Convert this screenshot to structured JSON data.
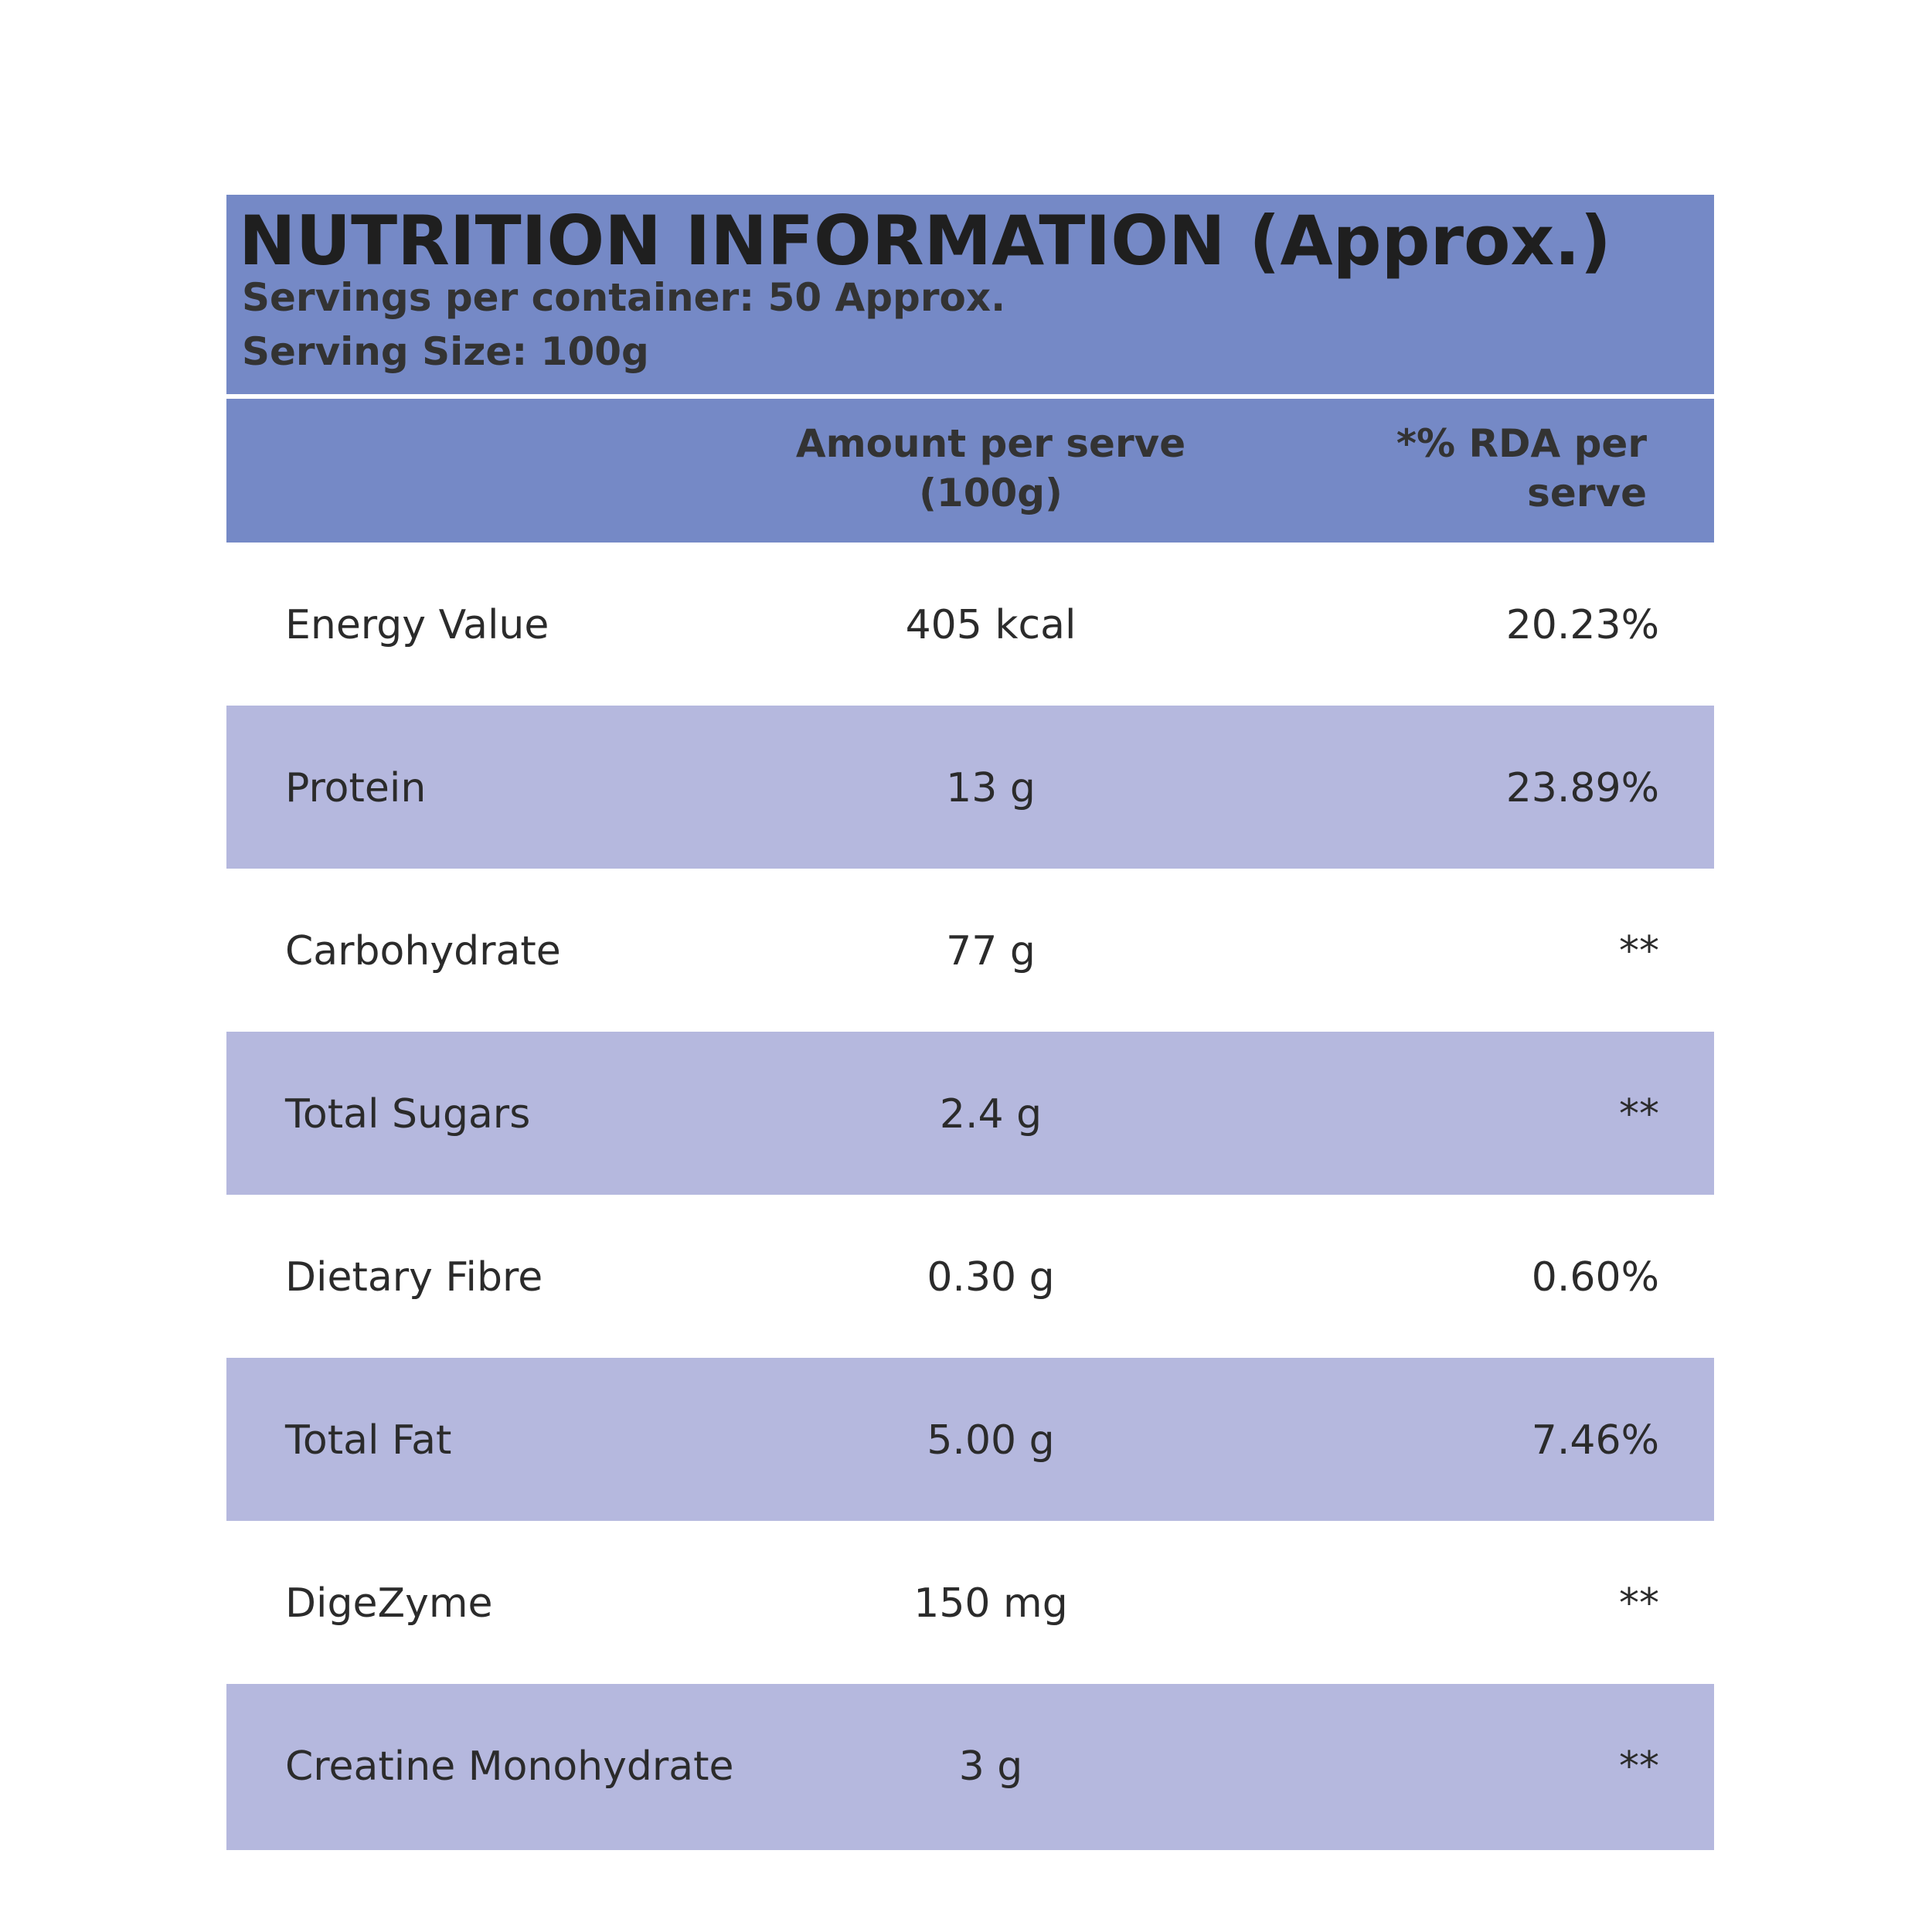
{
  "header": {
    "title": "NUTRITION INFORMATION (Approx.)",
    "lines": [
      "Servings per container: 50 Approx.",
      "Serving Size: 100g"
    ]
  },
  "table": {
    "columns": [
      "Amount per serve (100g)",
      "*% RDA per serve"
    ],
    "rows": [
      [
        "Energy Value",
        "405 kcal",
        "20.23%"
      ],
      [
        "Protein",
        "13 g",
        "23.89%"
      ],
      [
        "Carbohydrate",
        "77 g",
        "**"
      ],
      [
        "Total Sugars",
        "2.4 g",
        "**"
      ],
      [
        "Dietary Fibre",
        "0.30 g",
        "0.60%"
      ],
      [
        "Total Fat",
        "5.00 g",
        "7.46%"
      ],
      [
        "DigeZyme",
        "150 mg",
        "**"
      ],
      [
        "Creatine Monohydrate",
        "3 g",
        "**"
      ]
    ]
  }
}
